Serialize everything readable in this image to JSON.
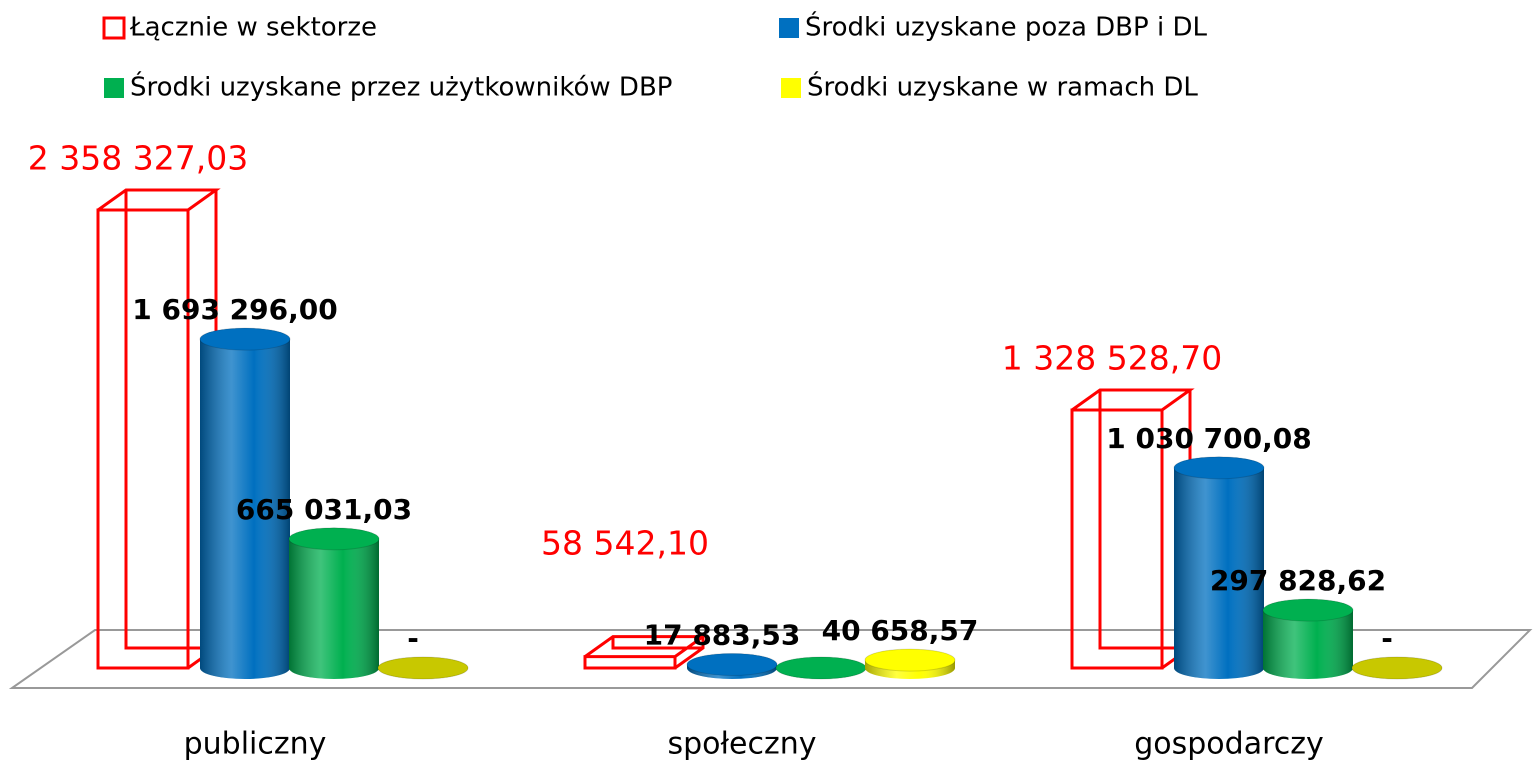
{
  "chart_data": {
    "type": "bar3d",
    "categories": [
      "publiczny",
      "społeczny",
      "gospodarczy"
    ],
    "series": [
      {
        "name": "Łącznie w sektorze",
        "color": "#ff0000",
        "outline": true,
        "values": [
          2358327.03,
          58542.1,
          1328528.7
        ],
        "value_labels": [
          "2 358 327,03",
          "58 542,10",
          "1 328 528,70"
        ]
      },
      {
        "name": "Środki uzyskane poza DBP i DL",
        "color": "#0070c0",
        "values": [
          1693296.0,
          17883.53,
          1030700.08
        ],
        "value_labels": [
          "1 693 296,00",
          "17 883,53",
          "1 030 700,08"
        ]
      },
      {
        "name": "Środki uzyskane przez użytkowników DBP",
        "color": "#00b050",
        "values": [
          665031.03,
          0,
          297828.62
        ],
        "value_labels": [
          "665 031,03",
          null,
          "297 828,62"
        ]
      },
      {
        "name": "Środki uzyskane w ramach DL",
        "color": "#ffff00",
        "values": [
          0,
          40658.57,
          0
        ],
        "value_labels": [
          "-",
          "40 658,57",
          "-"
        ]
      }
    ]
  }
}
